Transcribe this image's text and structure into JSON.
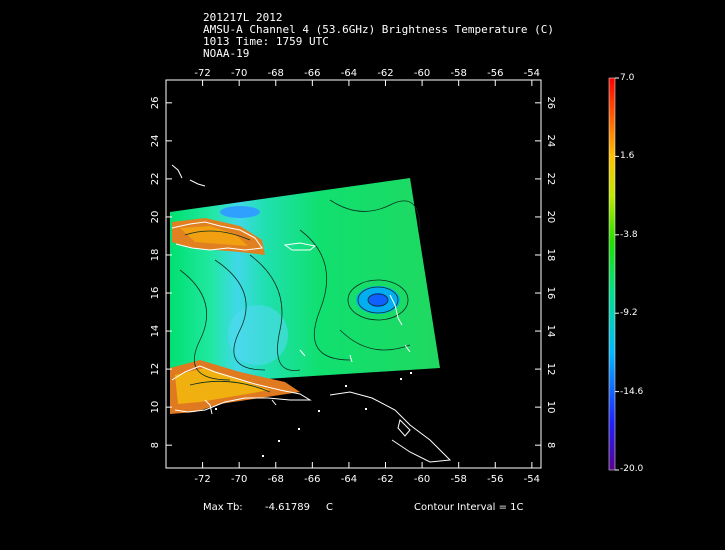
{
  "header": {
    "line1": "201217L 2012",
    "line2": "AMSU-A Channel 4 (53.6GHz) Brightness Temperature (C)",
    "line3": "1013 Time: 1759 UTC",
    "line4": "NOAA-19"
  },
  "axes": {
    "lon_ticks": [
      "-72",
      "-70",
      "-68",
      "-66",
      "-64",
      "-62",
      "-60",
      "-58",
      "-56",
      "-54"
    ],
    "lat_ticks": [
      "8",
      "10",
      "12",
      "14",
      "16",
      "18",
      "20",
      "22",
      "24",
      "26"
    ],
    "lon_range": [
      -74,
      -53.5
    ],
    "lat_range": [
      6.8,
      27.2
    ]
  },
  "colorbar": {
    "labels": [
      "7.0",
      "1.6",
      "-3.8",
      "-9.2",
      "-14.6",
      "-20.0"
    ],
    "range": [
      -20.0,
      7.0
    ],
    "colors": [
      "#6a00a0",
      "#1a1aff",
      "#00c8ff",
      "#00e070",
      "#7fe000",
      "#ffe000",
      "#ff8000",
      "#ff0000"
    ]
  },
  "footer": {
    "max_label": "Max Tb:",
    "max_value": "-4.61789",
    "max_unit": "C",
    "contour": "Contour Interval = 1C"
  }
}
